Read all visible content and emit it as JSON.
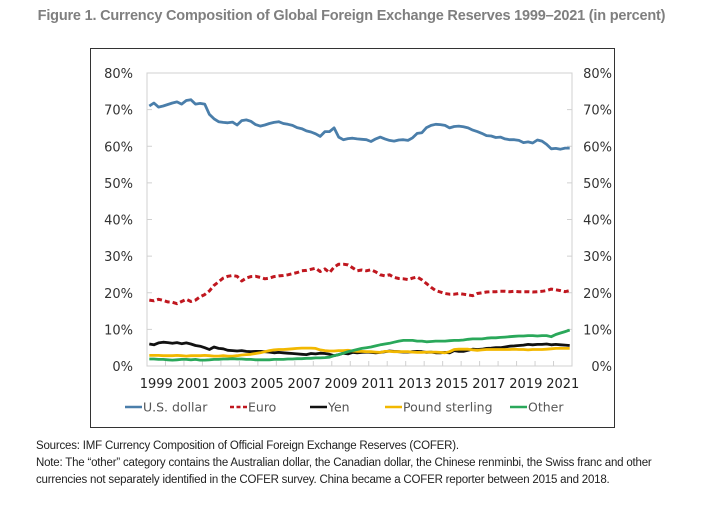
{
  "title": "Figure 1. Currency Composition of Global Foreign Exchange Reserves 1999–2021 (in percent)",
  "notes": {
    "sources": "Sources: IMF Currency Composition of Official Foreign Exchange Reserves (COFER).",
    "note": "Note: The “other” category contains the Australian dollar, the Canadian dollar, the Chinese renminbi, the Swiss franc and other currencies not separately identified in the COFER survey. China became a COFER reporter between 2015 and 2018."
  },
  "chart_data": {
    "type": "line",
    "title": "Figure 1. Currency Composition of Global Foreign Exchange Reserves 1999–2021 (in percent)",
    "xlabel": "",
    "ylabel": "",
    "x_tick_labels": [
      "1999",
      "2001",
      "2003",
      "2005",
      "2007",
      "2009",
      "2011",
      "2013",
      "2015",
      "2017",
      "2019",
      "2021"
    ],
    "y_tick_labels": [
      "0%",
      "10%",
      "20%",
      "30%",
      "40%",
      "50%",
      "60%",
      "70%",
      "80%"
    ],
    "y_ticks": [
      0,
      10,
      20,
      30,
      40,
      50,
      60,
      70,
      80
    ],
    "ylim": [
      0,
      80
    ],
    "xlim": [
      1999,
      2022
    ],
    "secondary_y_axis": true,
    "grid": false,
    "legend_position": "bottom",
    "x": [
      1999.0,
      1999.25,
      1999.5,
      1999.75,
      2000.0,
      2000.25,
      2000.5,
      2000.75,
      2001.0,
      2001.25,
      2001.5,
      2001.75,
      2002.0,
      2002.25,
      2002.5,
      2002.75,
      2003.0,
      2003.25,
      2003.5,
      2003.75,
      2004.0,
      2004.25,
      2004.5,
      2004.75,
      2005.0,
      2005.25,
      2005.5,
      2005.75,
      2006.0,
      2006.25,
      2006.5,
      2006.75,
      2007.0,
      2007.25,
      2007.5,
      2007.75,
      2008.0,
      2008.25,
      2008.5,
      2008.75,
      2009.0,
      2009.25,
      2009.5,
      2009.75,
      2010.0,
      2010.25,
      2010.5,
      2010.75,
      2011.0,
      2011.25,
      2011.5,
      2011.75,
      2012.0,
      2012.25,
      2012.5,
      2012.75,
      2013.0,
      2013.25,
      2013.5,
      2013.75,
      2014.0,
      2014.25,
      2014.5,
      2014.75,
      2015.0,
      2015.25,
      2015.5,
      2015.75,
      2016.0,
      2016.25,
      2016.5,
      2016.75,
      2017.0,
      2017.25,
      2017.5,
      2017.75,
      2018.0,
      2018.25,
      2018.5,
      2018.75,
      2019.0,
      2019.25,
      2019.5,
      2019.75,
      2020.0,
      2020.25,
      2020.5,
      2020.75,
      2021.0,
      2021.25,
      2021.5,
      2021.75
    ],
    "series": [
      {
        "name": "U.S. dollar",
        "color": "#4a7eaa",
        "style": "solid",
        "values": [
          71.0,
          71.8,
          70.7,
          71.0,
          71.4,
          71.8,
          72.1,
          71.5,
          72.5,
          72.7,
          71.5,
          71.7,
          71.5,
          68.7,
          67.5,
          66.7,
          66.5,
          66.4,
          66.6,
          65.8,
          67.0,
          67.2,
          66.8,
          65.9,
          65.5,
          65.8,
          66.2,
          66.5,
          66.7,
          66.2,
          66.0,
          65.7,
          65.1,
          64.8,
          64.2,
          63.9,
          63.4,
          62.7,
          64.0,
          64.0,
          65.0,
          62.5,
          61.8,
          62.1,
          62.2,
          62.0,
          61.9,
          61.8,
          61.3,
          62.0,
          62.5,
          62.0,
          61.6,
          61.4,
          61.7,
          61.8,
          61.6,
          62.3,
          63.5,
          63.7,
          65.1,
          65.7,
          66.0,
          65.9,
          65.7,
          65.0,
          65.4,
          65.5,
          65.3,
          65.0,
          64.4,
          64.0,
          63.5,
          62.9,
          62.8,
          62.4,
          62.5,
          62.0,
          61.8,
          61.8,
          61.6,
          61.0,
          61.2,
          60.9,
          61.7,
          61.4,
          60.5,
          59.3,
          59.4,
          59.2,
          59.5,
          59.5
        ]
      },
      {
        "name": "Euro",
        "color": "#c0171f",
        "style": "dashed",
        "values": [
          18.0,
          17.8,
          18.2,
          17.9,
          17.5,
          17.4,
          17.0,
          17.6,
          18.2,
          17.6,
          18.0,
          18.9,
          19.5,
          20.5,
          22.0,
          23.0,
          24.0,
          24.5,
          24.7,
          24.5,
          23.2,
          24.0,
          24.4,
          24.5,
          24.2,
          23.8,
          24.0,
          24.4,
          24.6,
          24.7,
          24.9,
          25.2,
          25.5,
          26.0,
          26.1,
          26.4,
          26.7,
          25.8,
          26.5,
          25.5,
          27.0,
          27.8,
          27.8,
          27.6,
          26.8,
          26.0,
          26.2,
          26.0,
          26.3,
          25.7,
          24.9,
          24.6,
          24.9,
          24.2,
          23.9,
          23.8,
          23.6,
          24.0,
          24.3,
          23.5,
          22.5,
          21.5,
          20.6,
          20.2,
          19.8,
          19.6,
          19.6,
          19.8,
          19.6,
          19.4,
          19.2,
          19.8,
          20.0,
          20.2,
          20.3,
          20.3,
          20.4,
          20.4,
          20.3,
          20.4,
          20.3,
          20.3,
          20.3,
          20.2,
          20.3,
          20.4,
          20.6,
          21.0,
          20.8,
          20.6,
          20.3,
          20.6
        ]
      },
      {
        "name": "Yen",
        "color": "#111111",
        "style": "solid",
        "values": [
          6.0,
          5.8,
          6.3,
          6.5,
          6.4,
          6.2,
          6.4,
          6.1,
          6.3,
          6.0,
          5.6,
          5.4,
          5.0,
          4.5,
          5.2,
          4.8,
          4.7,
          4.3,
          4.2,
          4.1,
          4.2,
          4.0,
          3.9,
          4.0,
          4.0,
          3.9,
          3.8,
          3.6,
          3.7,
          3.6,
          3.5,
          3.4,
          3.3,
          3.2,
          3.1,
          3.4,
          3.3,
          3.5,
          3.4,
          3.2,
          2.8,
          3.1,
          3.5,
          3.3,
          3.7,
          3.6,
          3.7,
          3.8,
          3.7,
          3.6,
          3.7,
          3.9,
          4.1,
          4.0,
          3.9,
          3.8,
          3.8,
          3.9,
          4.0,
          3.9,
          3.7,
          3.8,
          3.6,
          3.6,
          3.7,
          3.6,
          4.2,
          4.0,
          4.0,
          4.3,
          4.6,
          4.5,
          4.6,
          4.8,
          4.9,
          5.0,
          5.0,
          5.2,
          5.4,
          5.5,
          5.6,
          5.7,
          5.9,
          5.8,
          5.9,
          5.9,
          6.0,
          5.8,
          5.9,
          5.8,
          5.7,
          5.6
        ]
      },
      {
        "name": "Pound sterling",
        "color": "#f2b800",
        "style": "solid",
        "values": [
          2.9,
          2.9,
          2.9,
          2.8,
          2.8,
          2.8,
          2.9,
          2.8,
          2.7,
          2.8,
          2.8,
          2.8,
          2.9,
          2.8,
          2.7,
          2.7,
          2.8,
          2.7,
          2.7,
          2.8,
          3.0,
          3.1,
          3.2,
          3.4,
          3.6,
          3.9,
          4.2,
          4.4,
          4.5,
          4.5,
          4.6,
          4.7,
          4.8,
          4.9,
          4.9,
          4.9,
          4.8,
          4.4,
          4.2,
          4.1,
          4.1,
          4.2,
          4.2,
          4.3,
          4.1,
          4.0,
          4.0,
          3.9,
          3.9,
          3.8,
          3.7,
          4.0,
          4.0,
          3.9,
          3.9,
          3.9,
          3.9,
          3.8,
          3.7,
          3.7,
          3.8,
          3.8,
          3.8,
          3.7,
          3.6,
          3.9,
          4.5,
          4.6,
          4.6,
          4.6,
          4.4,
          4.3,
          4.4,
          4.5,
          4.5,
          4.5,
          4.5,
          4.5,
          4.5,
          4.6,
          4.5,
          4.5,
          4.4,
          4.5,
          4.5,
          4.5,
          4.6,
          4.7,
          4.8,
          4.8,
          4.8,
          4.8
        ]
      },
      {
        "name": "Other",
        "color": "#2aa85a",
        "style": "solid",
        "values": [
          1.9,
          1.9,
          1.8,
          1.8,
          1.7,
          1.6,
          1.7,
          1.8,
          1.8,
          1.7,
          1.8,
          1.6,
          1.6,
          1.7,
          1.8,
          1.8,
          1.9,
          1.9,
          2.0,
          1.9,
          1.9,
          1.8,
          1.8,
          1.7,
          1.7,
          1.7,
          1.7,
          1.8,
          1.8,
          1.8,
          1.9,
          1.9,
          2.0,
          2.0,
          2.1,
          2.1,
          2.2,
          2.2,
          2.3,
          2.4,
          2.8,
          3.1,
          3.5,
          3.9,
          4.2,
          4.5,
          4.8,
          5.0,
          5.2,
          5.5,
          5.8,
          6.0,
          6.2,
          6.5,
          6.8,
          7.0,
          7.0,
          7.0,
          6.8,
          6.8,
          6.6,
          6.7,
          6.8,
          6.8,
          6.8,
          6.9,
          7.0,
          7.0,
          7.1,
          7.3,
          7.4,
          7.4,
          7.4,
          7.6,
          7.7,
          7.7,
          7.8,
          7.9,
          8.0,
          8.1,
          8.2,
          8.2,
          8.3,
          8.3,
          8.2,
          8.3,
          8.3,
          8.0,
          8.6,
          9.0,
          9.4,
          9.8
        ]
      }
    ]
  }
}
